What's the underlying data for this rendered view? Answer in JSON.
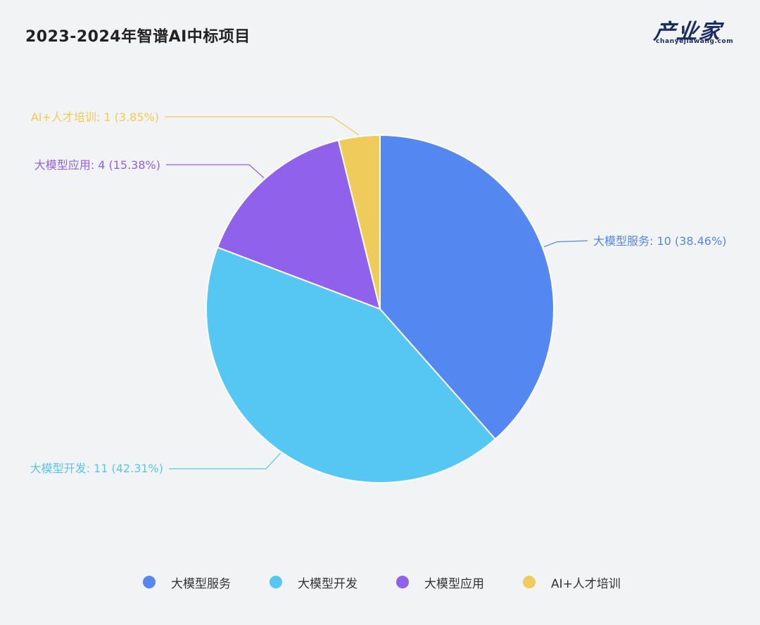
{
  "title": "2023-2024年智谱AI中标项目",
  "logo": {
    "main": "产业家",
    "sub": "chanyejiawang.com"
  },
  "colors": {
    "大模型服务": "#5487f0",
    "大模型开发": "#56c6f2",
    "大模型应用": "#9061ea",
    "AI+人才培训": "#eecb5b"
  },
  "chart_data": {
    "type": "pie",
    "title": "2023-2024年智谱AI中标项目",
    "slices": [
      {
        "name": "大模型服务",
        "value": 10,
        "percent": "38.46%",
        "label": "大模型服务: 10 (38.46%)"
      },
      {
        "name": "大模型开发",
        "value": 11,
        "percent": "42.31%",
        "label": "大模型开发: 11 (42.31%)"
      },
      {
        "name": "大模型应用",
        "value": 4,
        "percent": "15.38%",
        "label": "大模型应用: 4 (15.38%)"
      },
      {
        "name": "AI+人才培训",
        "value": 1,
        "percent": "3.85%",
        "label": "AI+人才培训: 1 (3.85%)"
      }
    ],
    "legend": {
      "position": "bottom",
      "entries": [
        "大模型服务",
        "大模型开发",
        "大模型应用",
        "AI+人才培训"
      ]
    }
  }
}
